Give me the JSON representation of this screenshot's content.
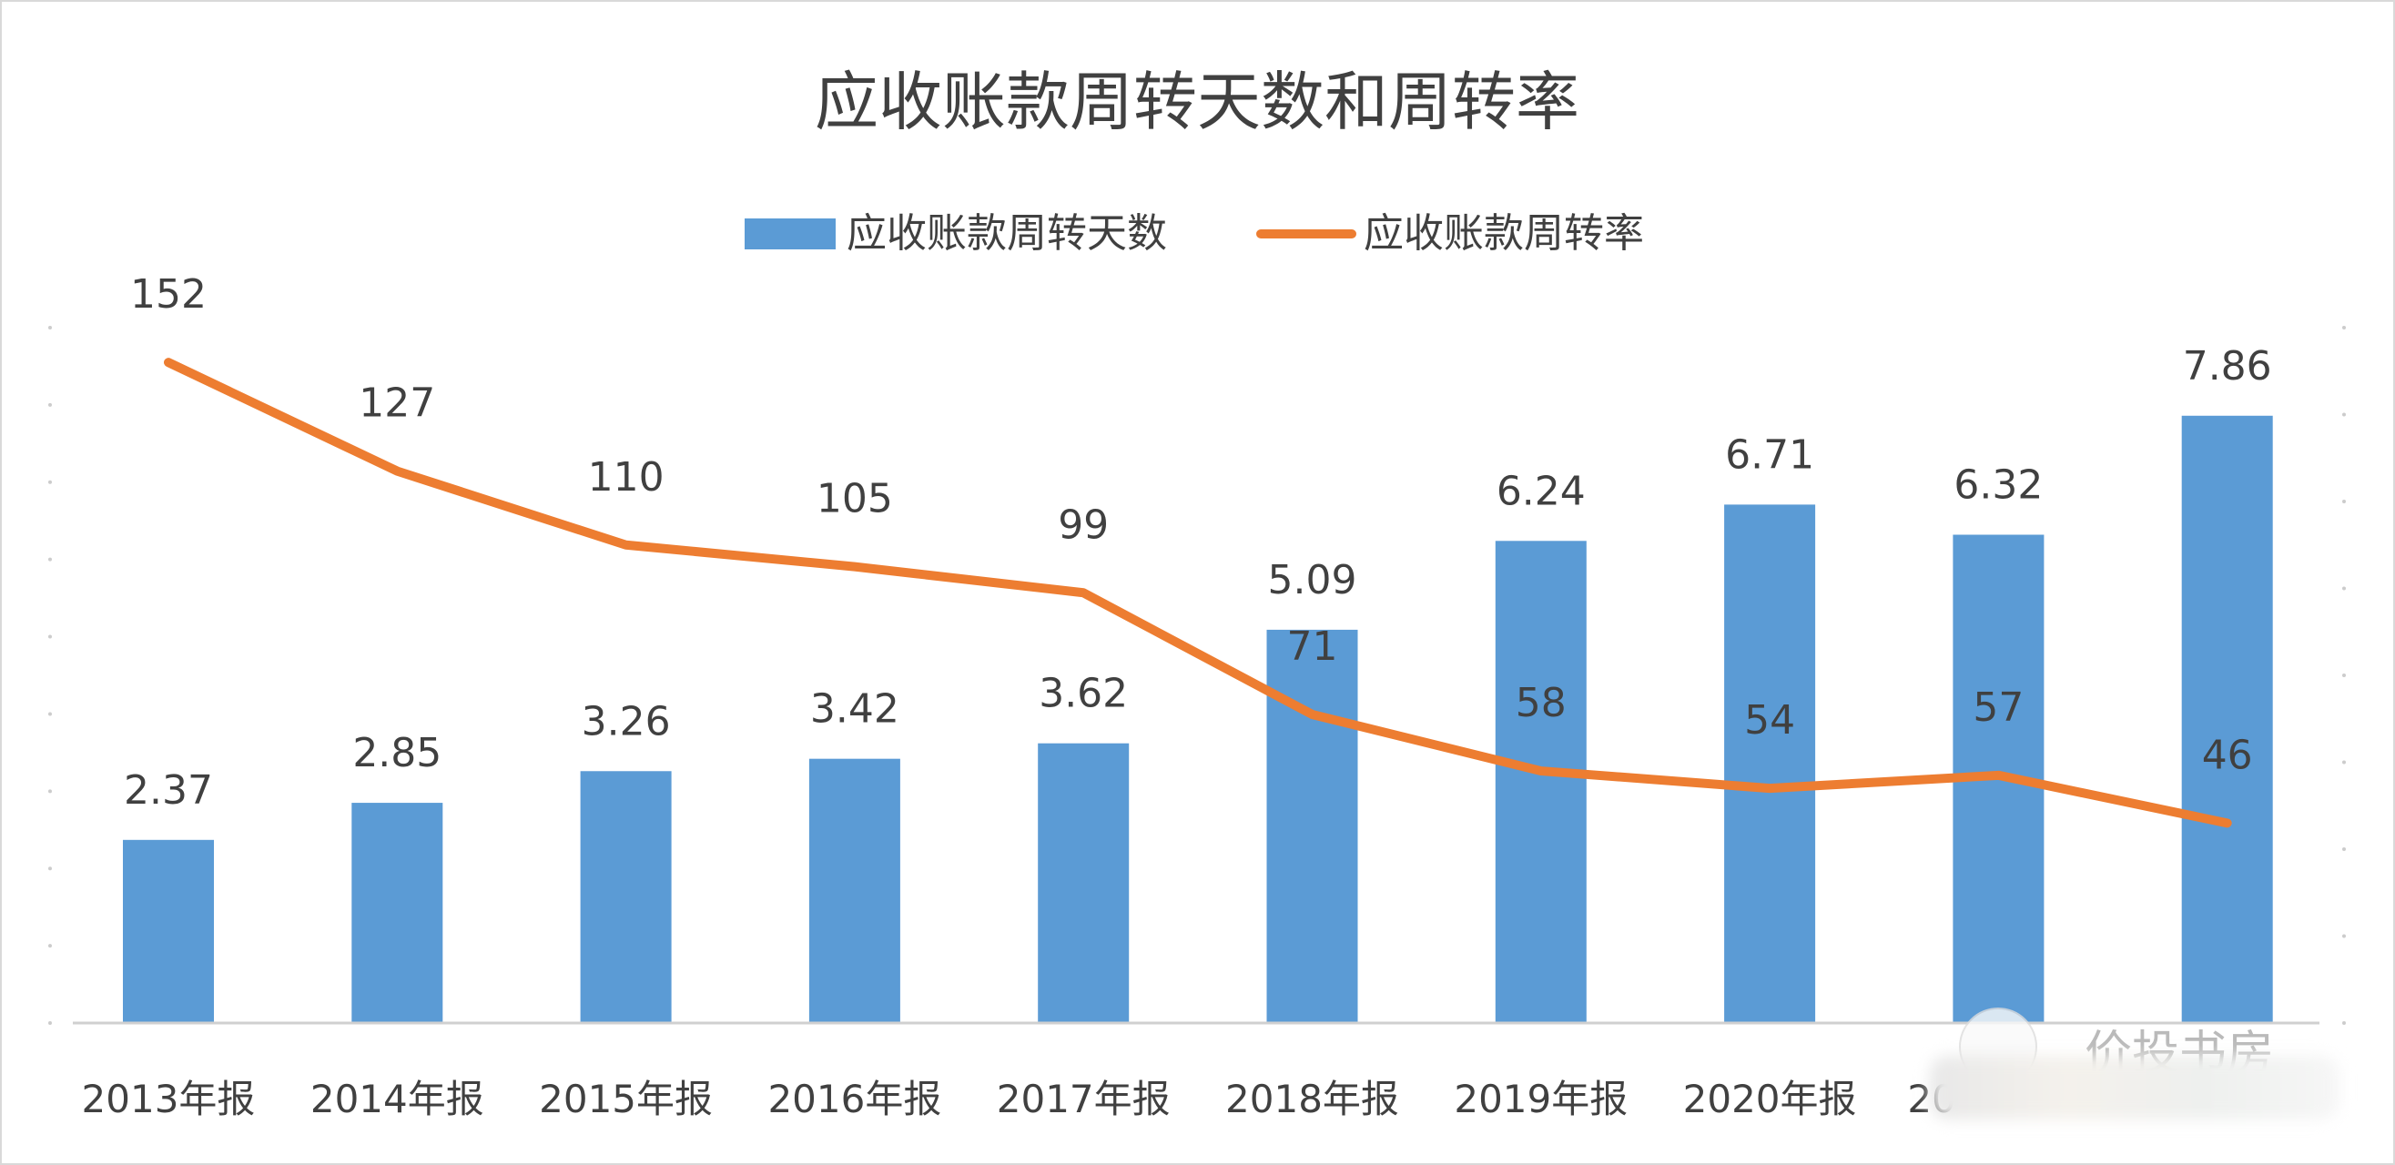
{
  "chart_data": {
    "type": "bar+line",
    "title": "应收账款周转天数和周转率",
    "legend_position": "top",
    "categories": [
      "2013年报",
      "2014年报",
      "2015年报",
      "2016年报",
      "2017年报",
      "2018年报",
      "2019年报",
      "2020年报",
      "20",
      ""
    ],
    "series": [
      {
        "name": "应收账款周转天数",
        "type": "bar",
        "axis": "left",
        "color": "#5B9BD5",
        "values": [
          2.37,
          2.85,
          3.26,
          3.42,
          3.62,
          5.09,
          6.24,
          6.71,
          6.32,
          7.86
        ]
      },
      {
        "name": "应收账款周转率",
        "type": "line",
        "axis": "right",
        "color": "#ED7D31",
        "values": [
          152,
          127,
          110,
          105,
          99,
          71,
          58,
          54,
          57,
          46
        ]
      }
    ],
    "y_left_range": [
      0,
      9
    ],
    "y_right_range": [
      0,
      160
    ],
    "grid": false,
    "watermark": "价投书房"
  }
}
